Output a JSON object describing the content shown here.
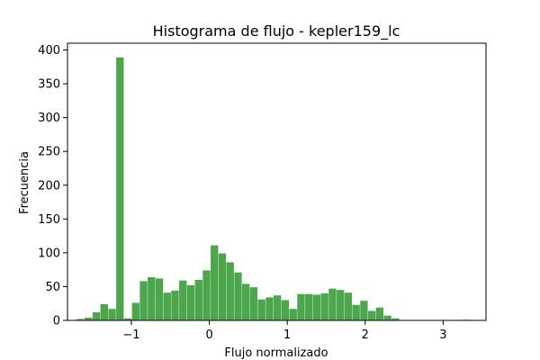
{
  "chart_data": {
    "type": "bar",
    "title": "Histograma de flujo - kepler159_lc",
    "xlabel": "Flujo normalizado",
    "ylabel": "Frecuencia",
    "xlim": [
      -1.82,
      3.55
    ],
    "ylim": [
      0,
      410
    ],
    "x_ticks": [
      -1,
      0,
      1,
      2,
      3
    ],
    "x_tick_labels": [
      "−1",
      "0",
      "1",
      "2",
      "3"
    ],
    "y_ticks": [
      0,
      50,
      100,
      150,
      200,
      250,
      300,
      350,
      400
    ],
    "y_tick_labels": [
      "0",
      "50",
      "100",
      "150",
      "200",
      "250",
      "300",
      "350",
      "400"
    ],
    "grid": false,
    "legend": "none",
    "color": "#4ca64c",
    "bin_width": 0.101,
    "bin_start": -1.7,
    "values": [
      2,
      4,
      12,
      24,
      17,
      389,
      3,
      26,
      58,
      64,
      62,
      41,
      44,
      59,
      52,
      60,
      74,
      111,
      99,
      86,
      71,
      54,
      49,
      31,
      34,
      37,
      30,
      17,
      39,
      39,
      38,
      40,
      47,
      45,
      41,
      23,
      29,
      14,
      19,
      7,
      3,
      0,
      0,
      0,
      0,
      0,
      0,
      0,
      0,
      1
    ]
  }
}
